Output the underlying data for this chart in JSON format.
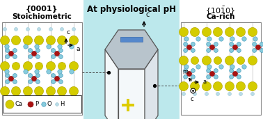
{
  "title_center": "At physiological pH",
  "title_left_1": "{0001}",
  "title_left_2": "Stoichiometric",
  "title_right_1": "{10$\\bar{1}$0}",
  "title_right_2": "Ca-rich",
  "bg_color_center": "#bce8ec",
  "ca_color": "#d4cc00",
  "ca_edge": "#b8aa00",
  "p_color": "#aa1111",
  "p_edge": "#881111",
  "o_color": "#88ccdd",
  "o_edge": "#4499bb",
  "h_color": "#bbdde8",
  "h_edge": "#88bbcc",
  "plus_color": "#ddcc00",
  "minus_color": "#5588cc",
  "crystal_top": "#b8c4cc",
  "crystal_front": "#f4f8fa",
  "crystal_right": "#dde4ea",
  "panel_bg": "#e8f0f4",
  "panel_edge": "#888888",
  "legend_box_edge": "#333333",
  "dashed_color": "#444444",
  "arrow_color": "#111111"
}
